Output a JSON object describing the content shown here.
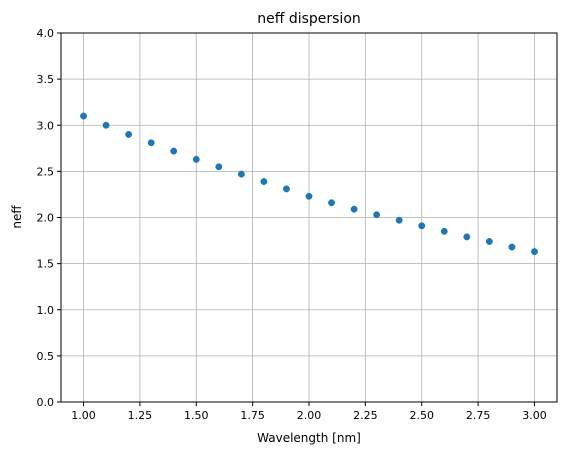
{
  "chart_data": {
    "type": "scatter",
    "title": "neff dispersion",
    "xlabel": "Wavelength [nm]",
    "ylabel": "neff",
    "xlim": [
      0.9,
      3.1
    ],
    "ylim": [
      0.0,
      4.0
    ],
    "grid": true,
    "x_ticks": [
      "1.00",
      "1.25",
      "1.50",
      "1.75",
      "2.00",
      "2.25",
      "2.50",
      "2.75",
      "3.00"
    ],
    "y_ticks": [
      "0.0",
      "0.5",
      "1.0",
      "1.5",
      "2.0",
      "2.5",
      "3.0",
      "3.5",
      "4.0"
    ],
    "series": [
      {
        "color": "#1f77b4",
        "x": [
          1.0,
          1.1,
          1.2,
          1.3,
          1.4,
          1.5,
          1.6,
          1.7,
          1.8,
          1.9,
          2.0,
          2.1,
          2.2,
          2.3,
          2.4,
          2.5,
          2.6,
          2.7,
          2.8,
          2.9,
          3.0
        ],
        "y": [
          3.1,
          3.0,
          2.9,
          2.81,
          2.72,
          2.63,
          2.55,
          2.47,
          2.39,
          2.31,
          2.23,
          2.16,
          2.09,
          2.03,
          1.97,
          1.91,
          1.85,
          1.79,
          1.74,
          1.68,
          1.63
        ]
      }
    ]
  }
}
